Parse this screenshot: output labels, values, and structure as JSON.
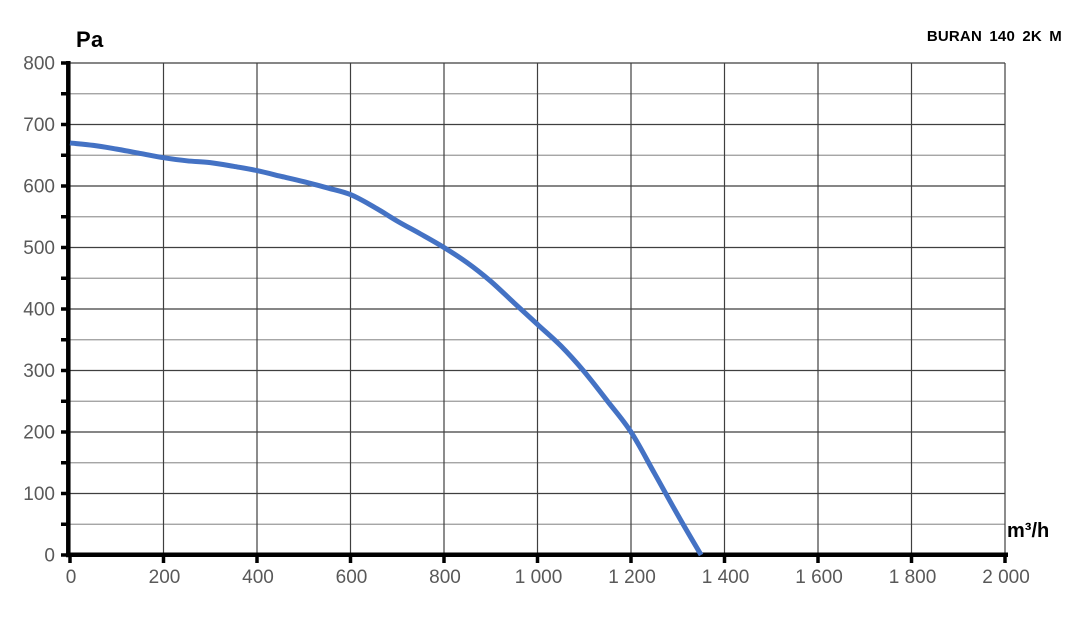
{
  "header": {
    "model_title": "BURAN 140 2K M",
    "y_unit_label": "Pa",
    "x_unit_label": "m³/h"
  },
  "colors": {
    "background": "#ffffff",
    "curve": "#4472C4",
    "axis": "#000000",
    "grid_major": "#3f3f3f",
    "grid_minor": "#9a9a9a",
    "tick_label": "#595959"
  },
  "chart_data": {
    "type": "line",
    "title": "BURAN 140 2K M",
    "xlabel": "m³/h",
    "ylabel": "Pa",
    "xlim": [
      0,
      2000
    ],
    "ylim": [
      0,
      800
    ],
    "grid": {
      "x_step": 200,
      "y_minor_step": 50,
      "y_major_step": 100
    },
    "legend_position": "none",
    "x_ticks": [
      {
        "value": 0,
        "label": "0"
      },
      {
        "value": 200,
        "label": "200"
      },
      {
        "value": 400,
        "label": "400"
      },
      {
        "value": 600,
        "label": "600"
      },
      {
        "value": 800,
        "label": "800"
      },
      {
        "value": 1000,
        "label": "1 000"
      },
      {
        "value": 1200,
        "label": "1 200"
      },
      {
        "value": 1400,
        "label": "1 400"
      },
      {
        "value": 1600,
        "label": "1 600"
      },
      {
        "value": 1800,
        "label": "1 800"
      },
      {
        "value": 2000,
        "label": "2 000"
      }
    ],
    "y_ticks": [
      {
        "value": 0,
        "label": "0"
      },
      {
        "value": 100,
        "label": "100"
      },
      {
        "value": 200,
        "label": "200"
      },
      {
        "value": 300,
        "label": "300"
      },
      {
        "value": 400,
        "label": "400"
      },
      {
        "value": 500,
        "label": "500"
      },
      {
        "value": 600,
        "label": "600"
      },
      {
        "value": 700,
        "label": "700"
      },
      {
        "value": 800,
        "label": "800"
      }
    ],
    "series": [
      {
        "name": "BURAN 140 2K M",
        "color": "#4472C4",
        "stroke_width": 5,
        "x": [
          0,
          50,
          100,
          150,
          200,
          250,
          300,
          350,
          400,
          450,
          500,
          550,
          600,
          650,
          700,
          750,
          800,
          850,
          900,
          950,
          1000,
          1050,
          1100,
          1150,
          1200,
          1250,
          1300,
          1350
        ],
        "y": [
          670,
          666,
          660,
          653,
          646,
          641,
          638,
          632,
          625,
          616,
          607,
          597,
          586,
          566,
          543,
          522,
          500,
          475,
          445,
          410,
          375,
          340,
          298,
          250,
          200,
          133,
          65,
          0
        ]
      }
    ]
  }
}
